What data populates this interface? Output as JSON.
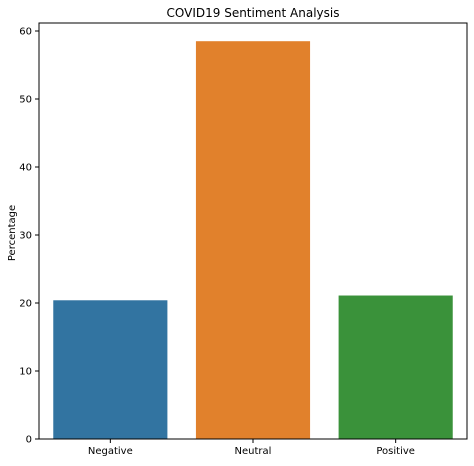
{
  "chart_data": {
    "type": "bar",
    "title": "COVID19 Sentiment Analysis",
    "xlabel": "",
    "ylabel": "Percentage",
    "categories": [
      "Negative",
      "Neutral",
      "Positive"
    ],
    "values": [
      20.4,
      58.5,
      21.1
    ],
    "colors": [
      "#3274a1",
      "#e1812c",
      "#3a923a"
    ],
    "ylim": [
      0,
      60
    ],
    "yticks": [
      0,
      10,
      20,
      30,
      40,
      50,
      60
    ],
    "grid": false,
    "legend": "none"
  }
}
